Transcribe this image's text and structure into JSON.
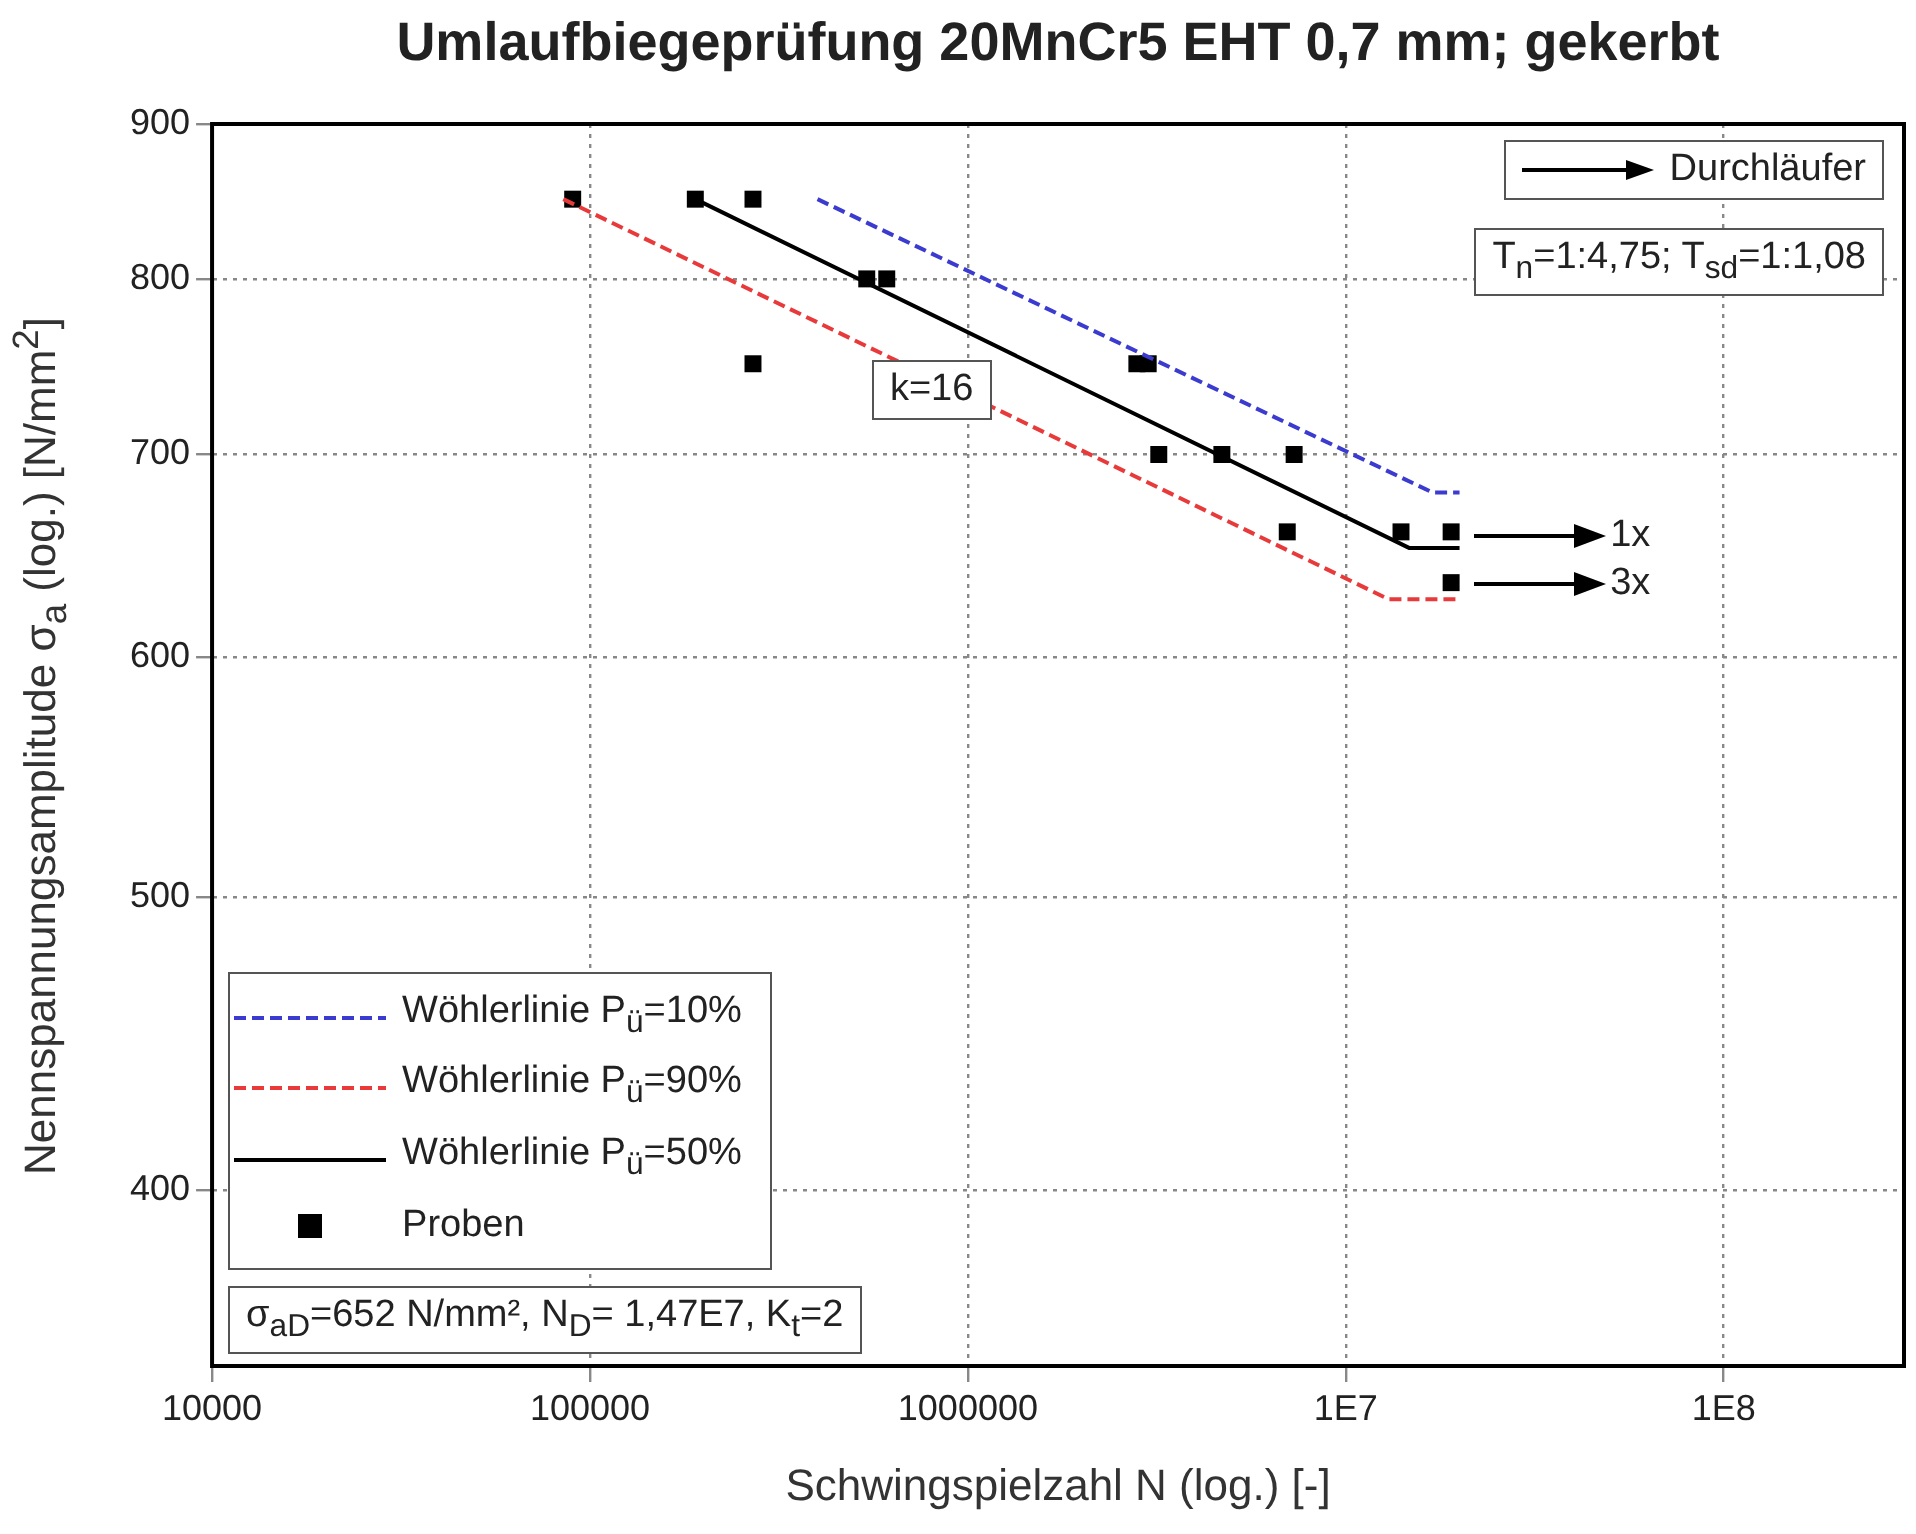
{
  "chart_data": {
    "type": "scatter",
    "title": "Umlaufbiegeprüfung 20MnCr5 EHT 0,7 mm; gekerbt",
    "xlabel": "Schwingspielzahl N (log.) [-]",
    "ylabel": "Nennspannungsamplitude σ$_{a}$ (log.) [N/mm$^{2}$]",
    "log": "xy",
    "grid": true,
    "legend": "bottom left",
    "xlim": [
      10000,
      300000000
    ],
    "xticks": [
      10000,
      100000,
      1000000,
      {
        "value": 10000000,
        "label": "1E7"
      },
      {
        "value": 100000000,
        "label": "1E8"
      }
    ],
    "ylim": [
      350,
      900
    ],
    "yticks": [
      400,
      500,
      600,
      700,
      800,
      900
    ],
    "series": [
      {
        "name": "Wöhlerlinie P$_{ü}$=10%",
        "type": "line",
        "color": "#3b3bd0",
        "line_style": "dashed",
        "marker": "none",
        "x": [
          400000,
          17000000,
          20000000
        ],
        "values": [
          850,
          680,
          680
        ]
      },
      {
        "name": "Wöhlerlinie P$_{ü}$=90%",
        "type": "line",
        "color": "#e83a3a",
        "line_style": "dashed",
        "marker": "none",
        "x": [
          85000,
          13000000,
          20000000
        ],
        "values": [
          850,
          627,
          627
        ]
      },
      {
        "name": "Wöhlerlinie P$_{ü}$=50%",
        "type": "line",
        "color": "#000000",
        "line_style": "solid",
        "marker": "none",
        "x": [
          190000,
          14700000,
          20000000
        ],
        "values": [
          850,
          652,
          652
        ]
      },
      {
        "name": "Proben",
        "type": "scatter",
        "color": "#000000",
        "marker": "square",
        "x": [
          90000,
          190000,
          270000,
          270000,
          540000,
          610000,
          2800000,
          3000000,
          3200000,
          4700000,
          7300000,
          7000000,
          14000000,
          19000000,
          19000000
        ],
        "values": [
          850,
          850,
          850,
          750,
          800,
          800,
          750,
          750,
          700,
          700,
          700,
          660,
          660,
          660,
          635
        ]
      }
    ],
    "annotations": [
      "Durchläufer",
      "T$_{n}$=1:4,75; T$_{sd}$=1:1,08",
      "k=16",
      "σ$_{aD}$=652 N/mm², N$_{D}$= 1,47E7, K$_{t}$=2",
      "1x",
      "3x"
    ]
  }
}
